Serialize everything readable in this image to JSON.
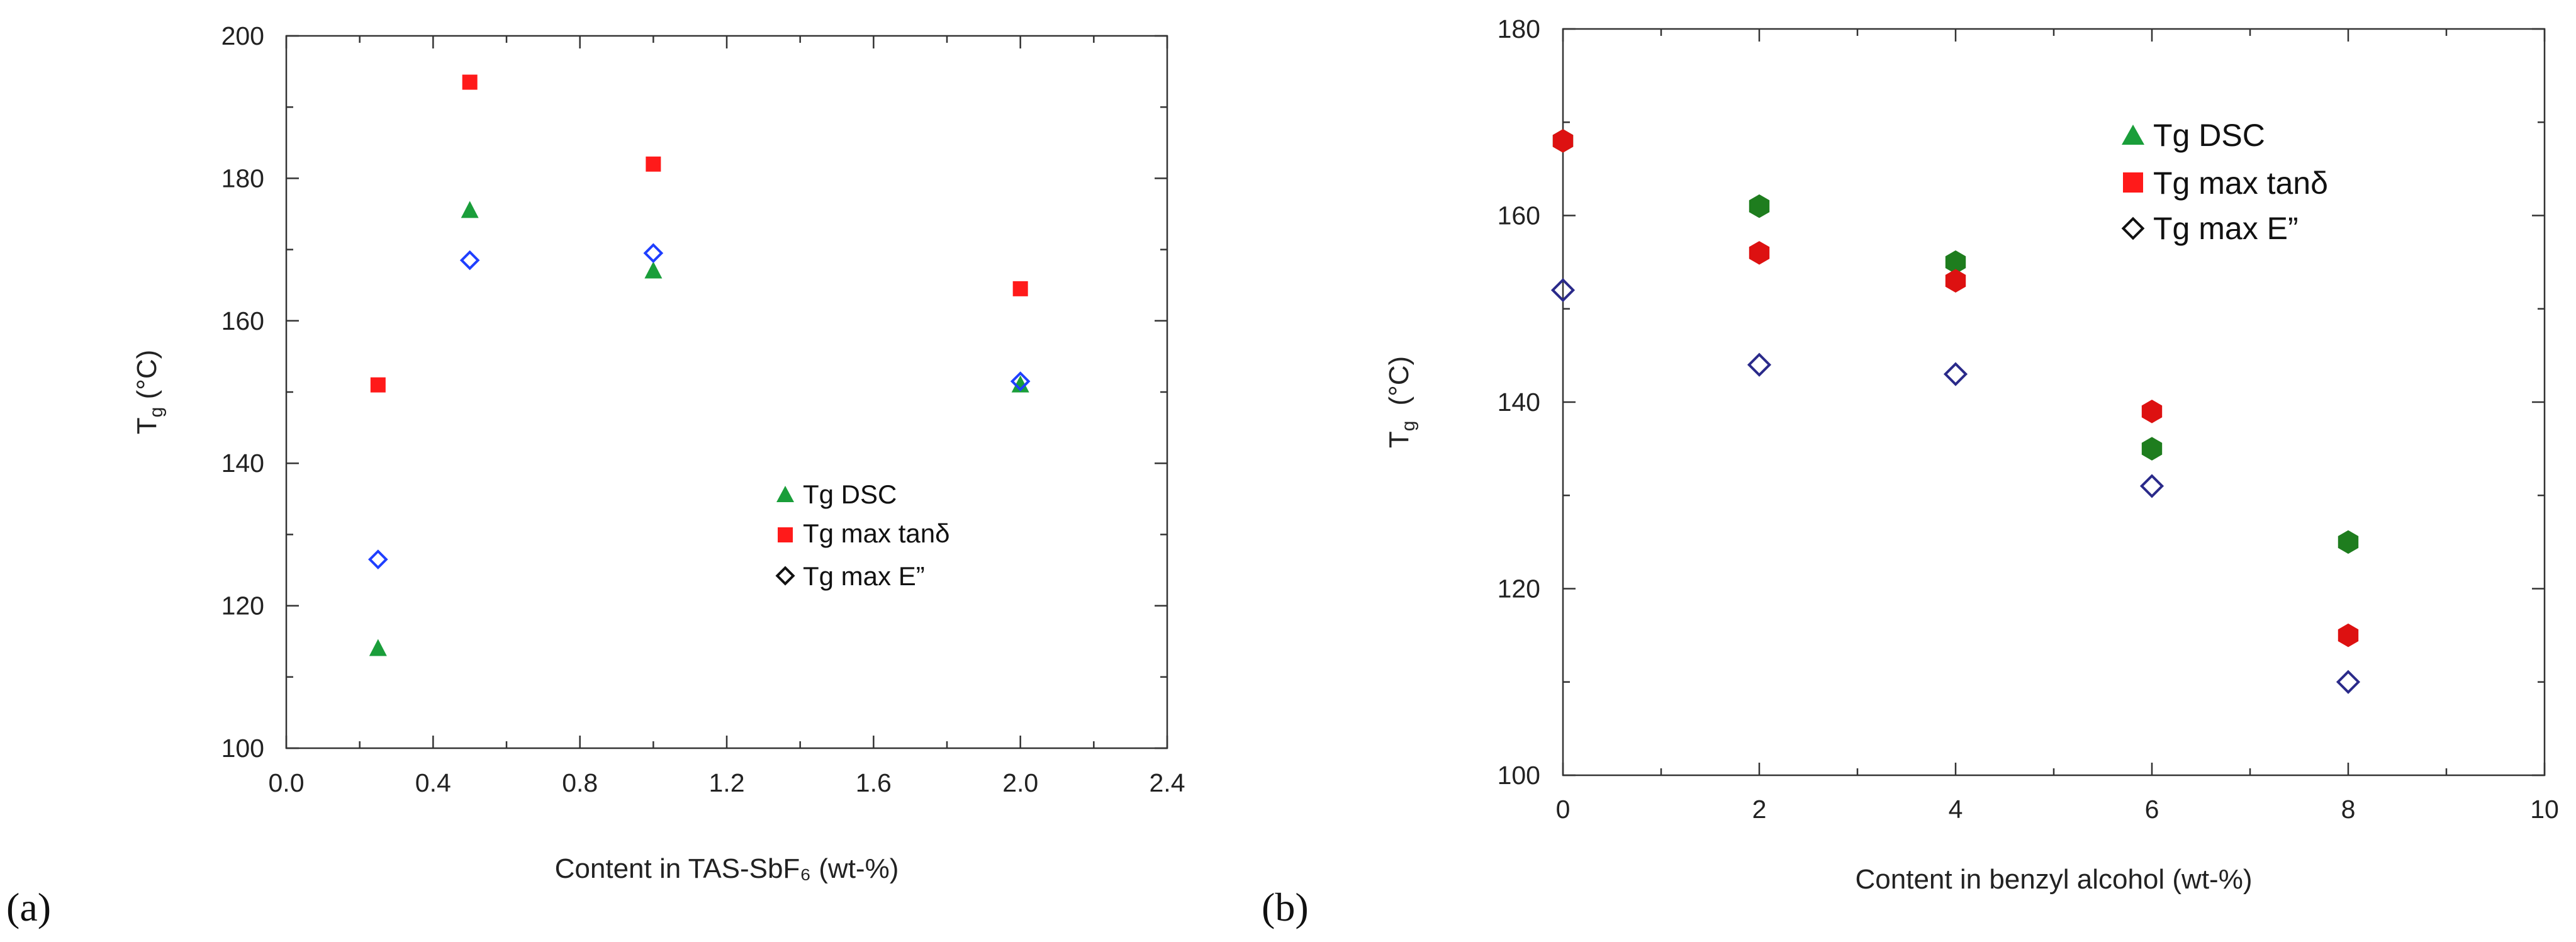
{
  "chart_data": [
    {
      "type": "scatter",
      "panel_label": "(a)",
      "title": "",
      "xlabel": "Content in TAS-SbF₆ (wt-%)",
      "ylabel_main": "T",
      "ylabel_sub": "g",
      "ylabel_unit": " (°C)",
      "xlim": [
        0.0,
        2.4
      ],
      "ylim": [
        100,
        200
      ],
      "xticks": [
        "0.0",
        "0.4",
        "0.8",
        "1.2",
        "1.6",
        "2.0",
        "2.4"
      ],
      "yticks": [
        "100",
        "120",
        "140",
        "160",
        "180",
        "200"
      ],
      "grid": false,
      "legend_position": "center-right",
      "series": [
        {
          "name": "Tg DSC",
          "marker": "triangle",
          "color": "#1a9e3a",
          "x": [
            0.25,
            0.5,
            1.0,
            2.0
          ],
          "y": [
            114,
            175.5,
            167,
            151
          ]
        },
        {
          "name": "Tg max tanδ",
          "marker": "square",
          "color": "#ff1a1a",
          "x": [
            0.25,
            0.5,
            1.0,
            2.0
          ],
          "y": [
            151,
            193.5,
            182,
            164.5
          ]
        },
        {
          "name": "Tg max E”",
          "marker": "diamond-open",
          "color": "#1f3fff",
          "legend_color": "#111111",
          "x": [
            0.25,
            0.5,
            1.0,
            2.0
          ],
          "y": [
            126.5,
            168.5,
            169.5,
            151.5
          ]
        }
      ]
    },
    {
      "type": "scatter",
      "panel_label": "(b)",
      "title": "",
      "xlabel": "Content in benzyl alcohol (wt-%)",
      "ylabel_main": "T",
      "ylabel_sub": "g",
      "ylabel_unit": "(°C)",
      "xlim": [
        0,
        10
      ],
      "ylim": [
        100,
        180
      ],
      "xticks": [
        "0",
        "2",
        "4",
        "6",
        "8",
        "10"
      ],
      "yticks": [
        "100",
        "120",
        "140",
        "160",
        "180"
      ],
      "grid": false,
      "legend_position": "top-right",
      "series": [
        {
          "name": "Tg DSC",
          "marker": "hexagon",
          "legend_marker": "triangle",
          "color": "#1e7d1e",
          "legend_color": "#1a9e3a",
          "x": [
            0,
            2,
            4,
            6,
            8
          ],
          "y": [
            168,
            161,
            155,
            135,
            125
          ]
        },
        {
          "name": "Tg max tanδ",
          "marker": "hexagon",
          "legend_marker": "square",
          "color": "#dd1111",
          "legend_color": "#ff1a1a",
          "x": [
            0,
            2,
            4,
            6,
            8
          ],
          "y": [
            168,
            156,
            153,
            139,
            115
          ]
        },
        {
          "name": "Tg max E”",
          "marker": "diamond-open",
          "color": "#2a2a8a",
          "legend_color": "#111111",
          "x": [
            0,
            2,
            4,
            6,
            8
          ],
          "y": [
            152,
            144,
            143,
            131,
            110
          ]
        }
      ]
    }
  ]
}
